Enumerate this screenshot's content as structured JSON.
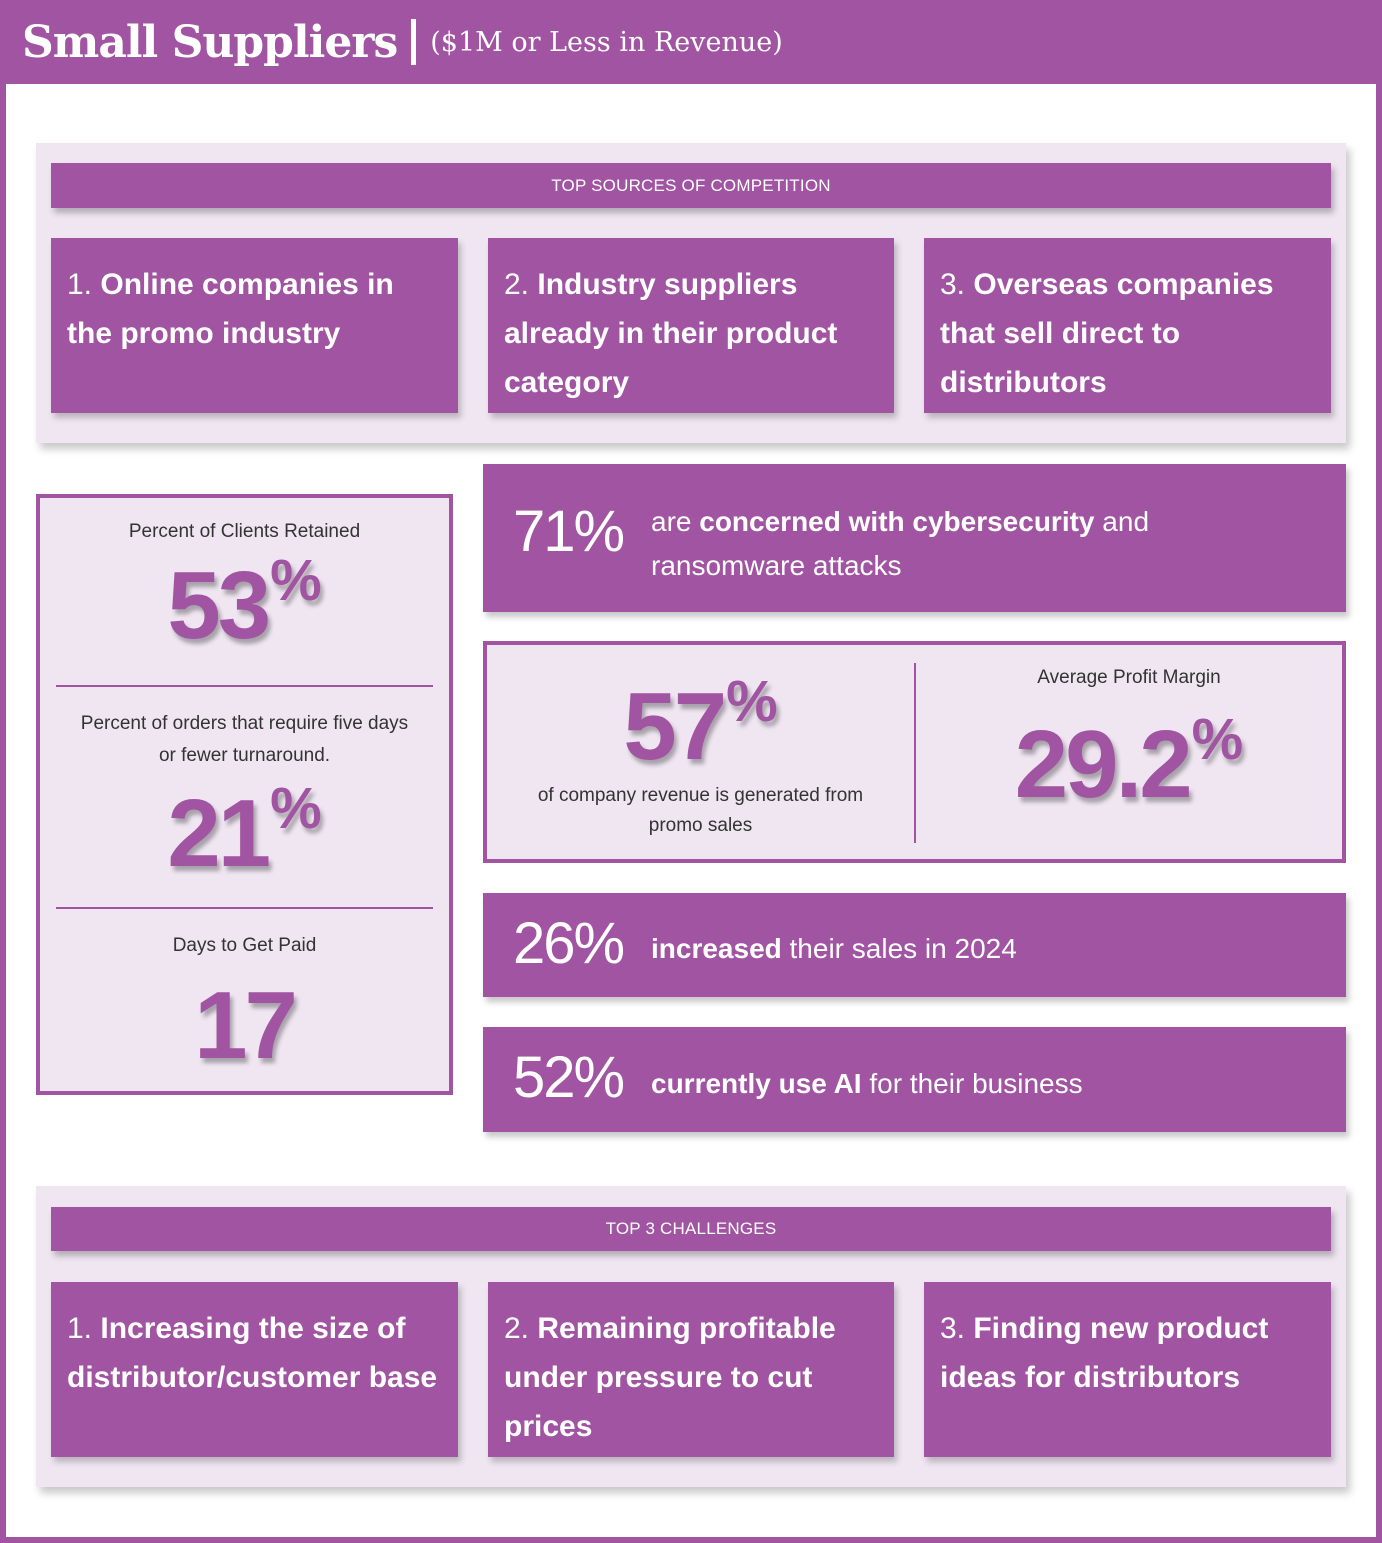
{
  "header": {
    "title": "Small Suppliers",
    "subtitle": "($1M or Less in Revenue)"
  },
  "competition": {
    "heading": "TOP SOURCES OF COMPETITION",
    "items": [
      {
        "number": "1.",
        "text": "Online companies in the promo industry"
      },
      {
        "number": "2.",
        "text": "Industry suppliers already in their product category"
      },
      {
        "number": "3.",
        "text": "Overseas companies that sell direct to distributors"
      }
    ]
  },
  "left_stats": {
    "clients_retained": {
      "label": "Percent of Clients Retained",
      "value": "53",
      "unit": "%"
    },
    "fast_turnaround": {
      "label": "Percent of orders that require five days or fewer turnaround.",
      "value": "21",
      "unit": "%"
    },
    "days_to_paid": {
      "label": "Days to Get Paid",
      "value": "17"
    }
  },
  "cybersecurity": {
    "pct": "71%",
    "pre": "are ",
    "bold": "concerned with cybersecurity",
    "post": " and ransomware attacks"
  },
  "revenue": {
    "value": "57",
    "unit": "%",
    "text": "of company revenue is generated from promo sales"
  },
  "profit_margin": {
    "label": "Average Profit Margin",
    "value": "29.2",
    "unit": "%"
  },
  "sales_increase": {
    "pct": "26%",
    "bold": "increased",
    "post": " their sales in 2024"
  },
  "ai_use": {
    "pct": "52%",
    "bold": "currently use AI",
    "post": " for their business"
  },
  "challenges": {
    "heading": "TOP 3 CHALLENGES",
    "items": [
      {
        "number": "1.",
        "text": "Increasing the size of distributor/customer base"
      },
      {
        "number": "2.",
        "text": "Remaining profitable under pressure to cut prices"
      },
      {
        "number": "3.",
        "text": "Finding new product ideas for distributors"
      }
    ]
  },
  "colors": {
    "accent": "#a054a1",
    "panel_bg": "#efe6f1",
    "text_dark": "#333333"
  }
}
